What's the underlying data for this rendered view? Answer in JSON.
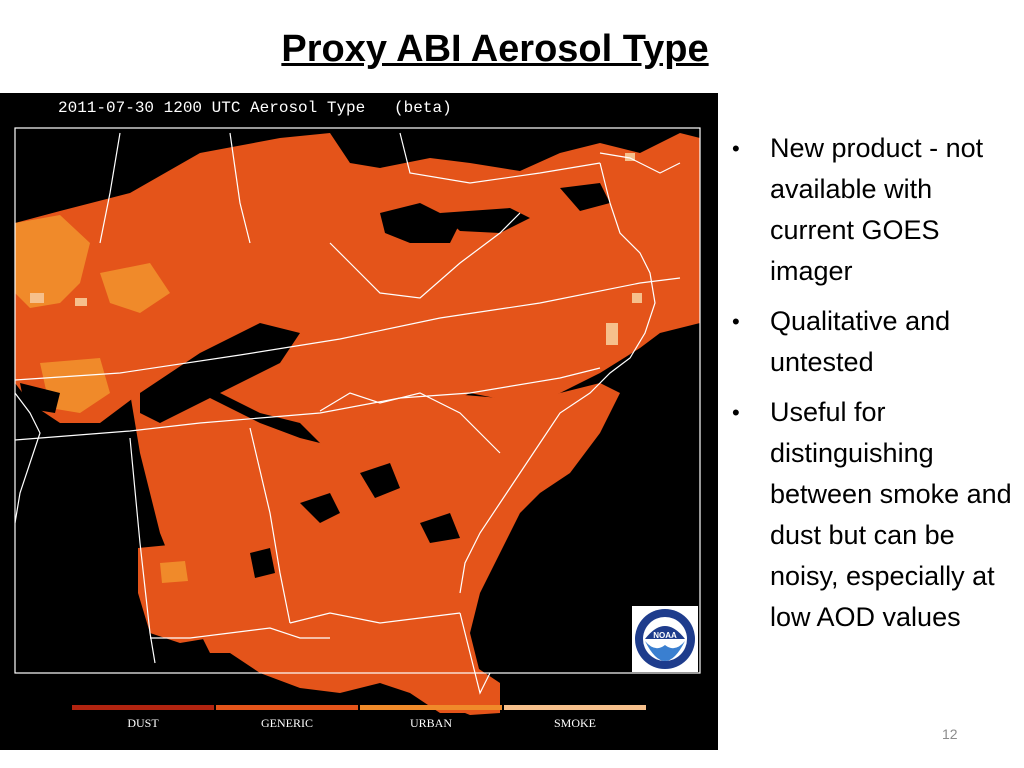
{
  "slide": {
    "title": "Proxy ABI Aerosol Type",
    "page_number": "12"
  },
  "map": {
    "caption": "2011-07-30 1200 UTC Aerosol Type   (beta)",
    "background_color": "#000000",
    "boundary_color": "#ffffff",
    "logo": {
      "icon": "noaa-logo-icon",
      "text": "NOAA"
    }
  },
  "legend": {
    "items": [
      {
        "label": "DUST",
        "color": "#b22410"
      },
      {
        "label": "GENERIC",
        "color": "#e4541a"
      },
      {
        "label": "URBAN",
        "color": "#f08a2a"
      },
      {
        "label": "SMOKE",
        "color": "#f6c08c"
      }
    ]
  },
  "bullets": [
    "New product - not available with current GOES imager",
    "Qualitative and untested",
    "Useful for distinguishing between smoke and dust but can be noisy, especially at low AOD values"
  ]
}
